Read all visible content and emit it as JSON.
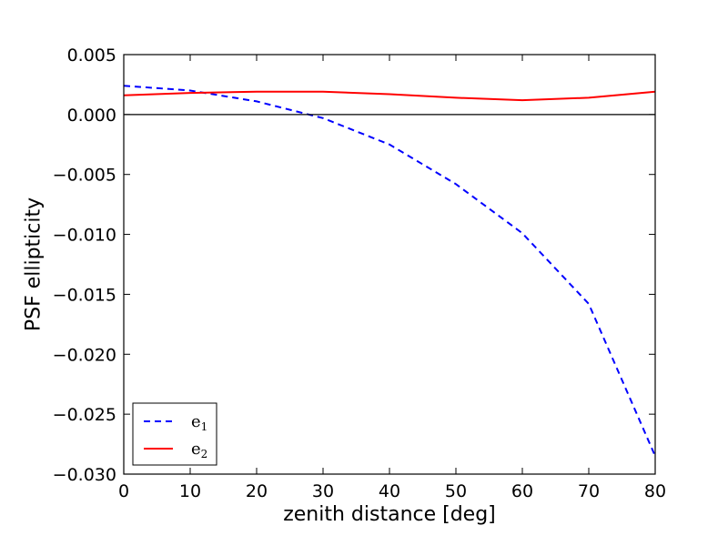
{
  "chart_data": {
    "type": "line",
    "xlabel": "zenith distance [deg]",
    "ylabel": "PSF ellipticity",
    "xlim": [
      0,
      80
    ],
    "ylim": [
      -0.03,
      0.005
    ],
    "x_ticks": [
      0,
      10,
      20,
      30,
      40,
      50,
      60,
      70,
      80
    ],
    "x_tick_labels": [
      "0",
      "10",
      "20",
      "30",
      "40",
      "50",
      "60",
      "70",
      "80"
    ],
    "y_ticks": [
      0.005,
      0.0,
      -0.005,
      -0.01,
      -0.015,
      -0.02,
      -0.025,
      -0.03
    ],
    "y_tick_labels": [
      "0.005",
      "0.000",
      "−0.005",
      "−0.010",
      "−0.015",
      "−0.020",
      "−0.025",
      "−0.030"
    ],
    "grid": false,
    "zero_line": true,
    "legend_position": "lower-left",
    "x": [
      0,
      10,
      20,
      30,
      40,
      50,
      60,
      70,
      80
    ],
    "series": [
      {
        "name": "e₁",
        "name_base": "e",
        "name_sub": "1",
        "color": "#0000ff",
        "style": "dashed",
        "values": [
          0.0024,
          0.002,
          0.0011,
          -0.0003,
          -0.0025,
          -0.0058,
          -0.0099,
          -0.0158,
          -0.0285
        ]
      },
      {
        "name": "e₂",
        "name_base": "e",
        "name_sub": "2",
        "color": "#ff0000",
        "style": "solid",
        "values": [
          0.0016,
          0.0018,
          0.0019,
          0.0019,
          0.0017,
          0.0014,
          0.0012,
          0.0014,
          0.0019
        ]
      }
    ]
  }
}
